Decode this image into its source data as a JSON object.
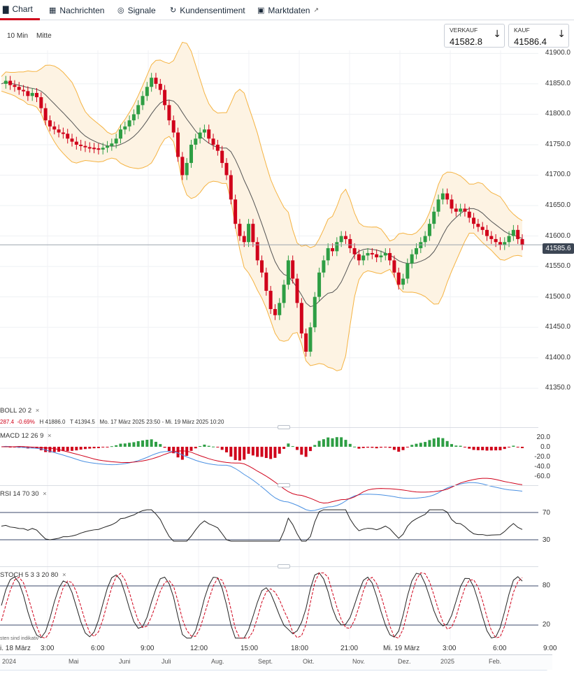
{
  "tabs": [
    {
      "label": "Chart",
      "icon": "bar-chart-icon",
      "active": true
    },
    {
      "label": "Nachrichten",
      "icon": "newspaper-icon"
    },
    {
      "label": "Signale",
      "icon": "signal-icon"
    },
    {
      "label": "Kundensentiment",
      "icon": "refresh-icon"
    },
    {
      "label": "Marktdaten",
      "icon": "calendar-icon",
      "external": true
    }
  ],
  "toolbar": {
    "interval": "10 Min",
    "price_type": "Mitte"
  },
  "quote": {
    "sell_label": "VERKAUF",
    "sell_value": "41582.8",
    "buy_label": "KAUF",
    "buy_value": "41586.4"
  },
  "current_price": "41585.6",
  "colors": {
    "up": "#2e9e44",
    "down": "#d0021b",
    "band": "#f5b342",
    "band_fill": "#fdf3e3",
    "ma": "#555555",
    "accent": "#d0021b"
  },
  "main_panel": {
    "indicator": {
      "name": "BOLL",
      "p1": "20",
      "p2": "2"
    },
    "info": {
      "change": "287.4",
      "pct": "-0.69%",
      "high": "H 41886.0",
      "low": "T 41394.5",
      "range": "Mo. 17 März 2025 23:50 - Mi. 19 März 2025 10:20"
    }
  },
  "macd_panel": {
    "name": "MACD",
    "p1": "12",
    "p2": "26",
    "p3": "9",
    "ticks": [
      "20.0",
      "0.0",
      "-20.0",
      "-40.0",
      "-60.0"
    ]
  },
  "rsi_panel": {
    "name": "RSI",
    "p1": "14",
    "p2": "70",
    "p3": "30",
    "ticks": [
      "70",
      "30"
    ]
  },
  "stoch_panel": {
    "name": "STOCH",
    "p1": "5",
    "p2": "3",
    "p3": "3",
    "p4": "20",
    "p5": "80",
    "ticks": [
      "80",
      "20"
    ],
    "note": "sten sind indikativ"
  },
  "time_axis": [
    "i. 18 März",
    "3:00",
    "6:00",
    "9:00",
    "12:00",
    "15:00",
    "18:00",
    "21:00",
    "Mi. 19 März",
    "3:00",
    "6:00",
    "9:00"
  ],
  "navigator": [
    "2024",
    "Mai",
    "Juni",
    "Juli",
    "Aug.",
    "Sept.",
    "Okt.",
    "Nov.",
    "Dez.",
    "2025",
    "Feb."
  ],
  "chart_data": {
    "type": "candlestick",
    "y_ticks": [
      "41900.0",
      "41850.0",
      "41800.0",
      "41750.0",
      "41700.0",
      "41650.0",
      "41600.0",
      "41550.0",
      "41500.0",
      "41450.0",
      "41400.0",
      "41350.0"
    ],
    "ylim": [
      41325,
      41905
    ],
    "series": [
      {
        "name": "price",
        "values": [
          41850,
          41855,
          41848,
          41845,
          41840,
          41838,
          41830,
          41835,
          41828,
          41810,
          41790,
          41780,
          41775,
          41770,
          41768,
          41760,
          41755,
          41750,
          41748,
          41746,
          41745,
          41744,
          41742,
          41745,
          41748,
          41752,
          41760,
          41775,
          41780,
          41790,
          41800,
          41815,
          41830,
          41845,
          41860,
          41850,
          41840,
          41815,
          41790,
          41770,
          41730,
          41700,
          41720,
          41750,
          41760,
          41770,
          41775,
          41760,
          41750,
          41740,
          41720,
          41700,
          41660,
          41620,
          41600,
          41590,
          41620,
          41590,
          41560,
          41540,
          41510,
          41480,
          41470,
          41490,
          41520,
          41560,
          41530,
          41490,
          41440,
          41410,
          41450,
          41500,
          41540,
          41560,
          41580,
          41575,
          41590,
          41600,
          41595,
          41580,
          41570,
          41560,
          41568,
          41572,
          41570,
          41565,
          41568,
          41572,
          41560,
          41540,
          41520,
          41530,
          41555,
          41570,
          41580,
          41590,
          41600,
          41620,
          41640,
          41660,
          41670,
          41660,
          41645,
          41640,
          41645,
          41640,
          41630,
          41620,
          41615,
          41610,
          41600,
          41595,
          41590,
          41585,
          41590,
          41600,
          41610,
          41595,
          41585
        ]
      }
    ]
  }
}
